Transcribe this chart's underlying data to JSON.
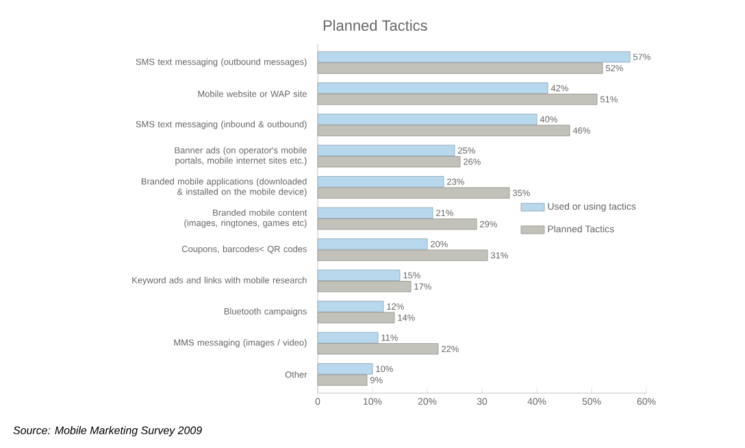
{
  "chart_data": {
    "type": "bar",
    "orientation": "horizontal",
    "title": "Planned Tactics",
    "categories": [
      "SMS text messaging (outbound messages)",
      "Mobile website or WAP site",
      "SMS text messaging (inbound & outbound)",
      "Banner ads (on operator's mobile portals, mobile internet sites etc.)",
      "Branded mobile applications (downloaded & installed on the mobile device)",
      "Branded mobile content (images, ringtones, games etc)",
      "Coupons, barcodes< QR codes",
      "Keyword ads and links with mobile research",
      "Bluetooth campaigns",
      "MMS messaging (images / video)",
      "Other"
    ],
    "series": [
      {
        "name": "Used or using tactics",
        "color": "#b8d8ee",
        "values": [
          57,
          42,
          40,
          25,
          23,
          21,
          20,
          15,
          12,
          11,
          10
        ],
        "value_labels": [
          "57%",
          "42%",
          "40%",
          "25%",
          "23%",
          "21%",
          "20%",
          "15%",
          "12%",
          "11%",
          "10%"
        ]
      },
      {
        "name": "Planned Tactics",
        "color": "#c2c2ba",
        "values": [
          52,
          51,
          46,
          26,
          35,
          29,
          31,
          17,
          14,
          22,
          9
        ],
        "value_labels": [
          "52%",
          "51%",
          "46%",
          "26%",
          "35%",
          "29%",
          "31%",
          "17%",
          "14%",
          "22%",
          "9%"
        ]
      }
    ],
    "xlim": [
      0,
      60
    ],
    "xticks": [
      0,
      {
        "value": 10,
        "label": "10%"
      },
      {
        "value": 20,
        "label": "20%"
      },
      30,
      {
        "value": 40,
        "label": "40%"
      },
      {
        "value": 50,
        "label": "50%"
      },
      {
        "value": 60,
        "label": "60%"
      }
    ],
    "legend": "right",
    "grid": false,
    "annotations": [
      "Source: Mobile Marketing Survey 2009"
    ]
  }
}
